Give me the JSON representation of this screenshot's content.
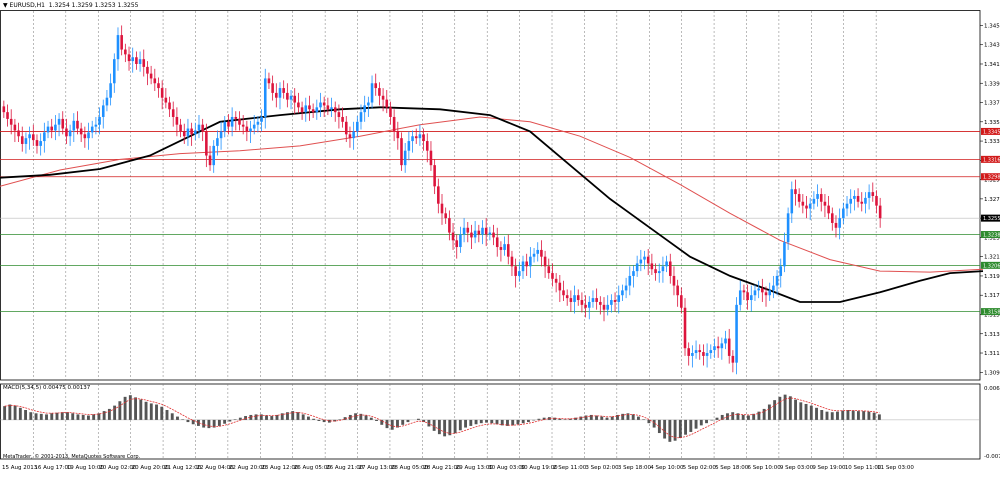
{
  "header": {
    "symbol_timeframe": "EURUSD,H1",
    "ohlc": "1.3254 1.3259 1.3253 1.3255"
  },
  "macd_panel": {
    "label": "MACD(5,34,5) 0.00475 0.00137",
    "axis_top": "0.00654",
    "axis_bottom": "-0.00713"
  },
  "copyright": "MetaTrader, © 2001-2013, MetaQuotes Software Corp.",
  "price_axis": {
    "ticks": [
      "1.3455",
      "1.3435",
      "1.3415",
      "1.3395",
      "1.3375",
      "1.3355",
      "1.3335",
      "1.3315",
      "1.3295",
      "1.3275",
      "1.3255",
      "1.3235",
      "1.3215",
      "1.3195",
      "1.3175",
      "1.3155",
      "1.3135",
      "1.3115",
      "1.3095"
    ],
    "current_price": "1.3255",
    "markers": [
      {
        "label": "1.3345",
        "color": "#d11a1a"
      },
      {
        "label": "1.3316",
        "color": "#d11a1a"
      },
      {
        "label": "1.3298",
        "color": "#d11a1a"
      },
      {
        "label": "1.3238",
        "color": "#2e8b2e"
      },
      {
        "label": "1.3206",
        "color": "#2e8b2e"
      },
      {
        "label": "1.3158",
        "color": "#2e8b2e"
      }
    ]
  },
  "time_axis": {
    "labels": [
      "15 Aug 2013",
      "16 Aug 17:00",
      "19 Aug 10:00",
      "20 Aug 02:00",
      "20 Aug 20:00",
      "21 Aug 12:00",
      "22 Aug 04:00",
      "22 Aug 20:00",
      "23 Aug 12:00",
      "26 Aug 05:00",
      "26 Aug 21:00",
      "27 Aug 13:00",
      "28 Aug 05:00",
      "28 Aug 21:00",
      "29 Aug 13:00",
      "30 Aug 03:00",
      "30 Aug 19:00",
      "2 Sep 11:00",
      "3 Sep 02:00",
      "3 Sep 18:00",
      "4 Sep 10:00",
      "5 Sep 02:00",
      "5 Sep 18:00",
      "6 Sep 10:00",
      "9 Sep 03:00",
      "9 Sep 19:00",
      "10 Sep 11:00",
      "11 Sep 03:00"
    ]
  },
  "colors": {
    "bull": "#1e90ff",
    "bear": "#dc143c",
    "resistance": "#e8302f",
    "support": "#2e8b2e",
    "ma_slow": "#e05050",
    "ma_fast": "#000000",
    "macd_hist": "#555555",
    "macd_signal": "#e03030"
  },
  "chart_data": {
    "type": "candlestick",
    "symbol": "EURUSD",
    "timeframe": "H1",
    "ylim": [
      1.3087,
      1.347
    ],
    "close_series": [
      1.3365,
      1.3358,
      1.3352,
      1.3346,
      1.334,
      1.3332,
      1.3338,
      1.3342,
      1.3336,
      1.333,
      1.3335,
      1.3344,
      1.335,
      1.3346,
      1.3352,
      1.3358,
      1.3348,
      1.334,
      1.3346,
      1.3356,
      1.3348,
      1.3342,
      1.3338,
      1.3344,
      1.335,
      1.3352,
      1.336,
      1.3372,
      1.338,
      1.3395,
      1.342,
      1.3445,
      1.343,
      1.3425,
      1.3418,
      1.3422,
      1.3415,
      1.342,
      1.3412,
      1.3405,
      1.34,
      1.3395,
      1.339,
      1.338,
      1.3375,
      1.3368,
      1.336,
      1.3352,
      1.3345,
      1.334,
      1.3348,
      1.3342,
      1.3346,
      1.3352,
      1.3345,
      1.332,
      1.331,
      1.333,
      1.3338,
      1.3345,
      1.3355,
      1.335,
      1.336,
      1.3358,
      1.3352,
      1.335,
      1.3345,
      1.3348,
      1.3352,
      1.3355,
      1.336,
      1.34,
      1.3395,
      1.3385,
      1.338,
      1.339,
      1.3385,
      1.3378,
      1.3382,
      1.3375,
      1.337,
      1.3365,
      1.3372,
      1.3368,
      1.3365,
      1.337,
      1.3375,
      1.3372,
      1.3368,
      1.337,
      1.3365,
      1.336,
      1.3355,
      1.3342,
      1.3338,
      1.3345,
      1.3355,
      1.3365,
      1.3372,
      1.3375,
      1.3395,
      1.339,
      1.3382,
      1.3378,
      1.337,
      1.336,
      1.3345,
      1.3338,
      1.331,
      1.3325,
      1.3335,
      1.334,
      1.3338,
      1.3342,
      1.3335,
      1.3325,
      1.331,
      1.3288,
      1.327,
      1.326,
      1.3255,
      1.324,
      1.3232,
      1.3225,
      1.3238,
      1.3245,
      1.324,
      1.3235,
      1.3242,
      1.3238,
      1.3245,
      1.3238,
      1.324,
      1.3235,
      1.3225,
      1.3222,
      1.3228,
      1.3215,
      1.3205,
      1.3195,
      1.32,
      1.321,
      1.3205,
      1.3215,
      1.3218,
      1.3222,
      1.3215,
      1.3205,
      1.3198,
      1.3192,
      1.3188,
      1.318,
      1.3175,
      1.3172,
      1.3168,
      1.3175,
      1.317,
      1.3165,
      1.3162,
      1.3168,
      1.3172,
      1.3168,
      1.3165,
      1.316,
      1.3165,
      1.317,
      1.3168,
      1.3175,
      1.318,
      1.3185,
      1.3195,
      1.32,
      1.3208,
      1.3212,
      1.3215,
      1.3208,
      1.3202,
      1.3198,
      1.32,
      1.3205,
      1.321,
      1.3195,
      1.3185,
      1.3175,
      1.3162,
      1.312,
      1.3112,
      1.3115,
      1.3118,
      1.3116,
      1.3112,
      1.3115,
      1.3118,
      1.3122,
      1.312,
      1.3125,
      1.313,
      1.3112,
      1.3105,
      1.3165,
      1.318,
      1.3178,
      1.317,
      1.3175,
      1.318,
      1.3182,
      1.3178,
      1.3175,
      1.318,
      1.3185,
      1.3195,
      1.3205,
      1.323,
      1.326,
      1.3285,
      1.328,
      1.3272,
      1.3268,
      1.3265,
      1.327,
      1.3275,
      1.328,
      1.3272,
      1.3268,
      1.326,
      1.325,
      1.3245,
      1.3255,
      1.3265,
      1.327,
      1.3275,
      1.3278,
      1.3272,
      1.327,
      1.3276,
      1.3282,
      1.3278,
      1.3268,
      1.3255
    ],
    "ma_fast_path": [
      [
        0,
        1.3297
      ],
      [
        0.05,
        1.33
      ],
      [
        0.1,
        1.3306
      ],
      [
        0.15,
        1.332
      ],
      [
        0.19,
        1.334
      ],
      [
        0.22,
        1.3355
      ],
      [
        0.28,
        1.3362
      ],
      [
        0.34,
        1.3368
      ],
      [
        0.38,
        1.337
      ],
      [
        0.44,
        1.3368
      ],
      [
        0.49,
        1.3362
      ],
      [
        0.53,
        1.3345
      ],
      [
        0.57,
        1.331
      ],
      [
        0.61,
        1.3275
      ],
      [
        0.65,
        1.3245
      ],
      [
        0.69,
        1.3215
      ],
      [
        0.73,
        1.3195
      ],
      [
        0.77,
        1.318
      ],
      [
        0.8,
        1.3168
      ],
      [
        0.84,
        1.3168
      ],
      [
        0.88,
        1.3178
      ],
      [
        0.92,
        1.319
      ],
      [
        0.95,
        1.3198
      ],
      [
        0.983,
        1.32
      ]
    ],
    "ma_slow_path": [
      [
        0,
        1.3288
      ],
      [
        0.06,
        1.3305
      ],
      [
        0.12,
        1.3316
      ],
      [
        0.18,
        1.3322
      ],
      [
        0.24,
        1.3325
      ],
      [
        0.3,
        1.333
      ],
      [
        0.36,
        1.334
      ],
      [
        0.42,
        1.3352
      ],
      [
        0.48,
        1.336
      ],
      [
        0.53,
        1.3355
      ],
      [
        0.58,
        1.334
      ],
      [
        0.63,
        1.3318
      ],
      [
        0.68,
        1.329
      ],
      [
        0.73,
        1.326
      ],
      [
        0.78,
        1.3232
      ],
      [
        0.83,
        1.3212
      ],
      [
        0.88,
        1.32
      ],
      [
        0.93,
        1.3199
      ],
      [
        0.983,
        1.3202
      ]
    ],
    "resistance_levels": [
      1.3345,
      1.3316,
      1.3298
    ],
    "support_levels": [
      1.3238,
      1.3206,
      1.3158
    ],
    "macd": {
      "ylim": [
        -0.00713,
        0.00654
      ],
      "histogram": [
        0.0025,
        0.0028,
        0.0026,
        0.0022,
        0.0018,
        0.0014,
        0.0012,
        0.0011,
        0.001,
        0.0012,
        0.0013,
        0.0014,
        0.0014,
        0.0012,
        0.001,
        0.0009,
        0.0008,
        0.001,
        0.0012,
        0.0016,
        0.002,
        0.0026,
        0.0034,
        0.0042,
        0.0045,
        0.0041,
        0.0037,
        0.0033,
        0.003,
        0.0028,
        0.0024,
        0.0018,
        0.0012,
        0.0006,
        0.0001,
        -0.0004,
        -0.0008,
        -0.0011,
        -0.0014,
        -0.0015,
        -0.0014,
        -0.0011,
        -0.0007,
        -0.0003,
        0.0001,
        0.0004,
        0.0007,
        0.0009,
        0.001,
        0.001,
        0.0008,
        0.0007,
        0.0009,
        0.0012,
        0.0014,
        0.0016,
        0.0014,
        0.001,
        0.0006,
        0.0002,
        -0.0002,
        -0.0004,
        -0.0005,
        -0.0003,
        0.0001,
        0.0005,
        0.0009,
        0.0012,
        0.0011,
        0.0008,
        0.0004,
        -0.0002,
        -0.0009,
        -0.0015,
        -0.0018,
        -0.0014,
        -0.0009,
        -0.0004,
        0.0,
        0.0002,
        -0.0004,
        -0.0012,
        -0.002,
        -0.0026,
        -0.003,
        -0.0028,
        -0.0024,
        -0.0019,
        -0.0014,
        -0.0011,
        -0.0008,
        -0.0006,
        -0.0005,
        -0.0006,
        -0.0008,
        -0.001,
        -0.0011,
        -0.001,
        -0.0008,
        -0.0006,
        -0.0004,
        -0.0001,
        0.0002,
        0.0004,
        0.0005,
        0.0004,
        0.0002,
        0.0001,
        0.0002,
        0.0004,
        0.0006,
        0.0008,
        0.0009,
        0.0008,
        0.0006,
        0.0004,
        0.0006,
        0.0009,
        0.0011,
        0.0012,
        0.001,
        0.0006,
        0.0001,
        -0.0006,
        -0.0014,
        -0.0024,
        -0.0034,
        -0.004,
        -0.0038,
        -0.0033,
        -0.0027,
        -0.0022,
        -0.0016,
        -0.001,
        -0.0006,
        -0.0001,
        0.0004,
        0.0009,
        0.0012,
        0.0014,
        0.0012,
        0.0009,
        0.0008,
        0.0011,
        0.0015,
        0.002,
        0.0028,
        0.0036,
        0.0042,
        0.0046,
        0.0043,
        0.0037,
        0.0032,
        0.0029,
        0.0026,
        0.0022,
        0.0018,
        0.0015,
        0.0014,
        0.0015,
        0.0017,
        0.0018,
        0.0017,
        0.0016,
        0.0016,
        0.0015,
        0.0013,
        0.001
      ]
    },
    "title": "",
    "xlabel": "",
    "ylabel": ""
  }
}
